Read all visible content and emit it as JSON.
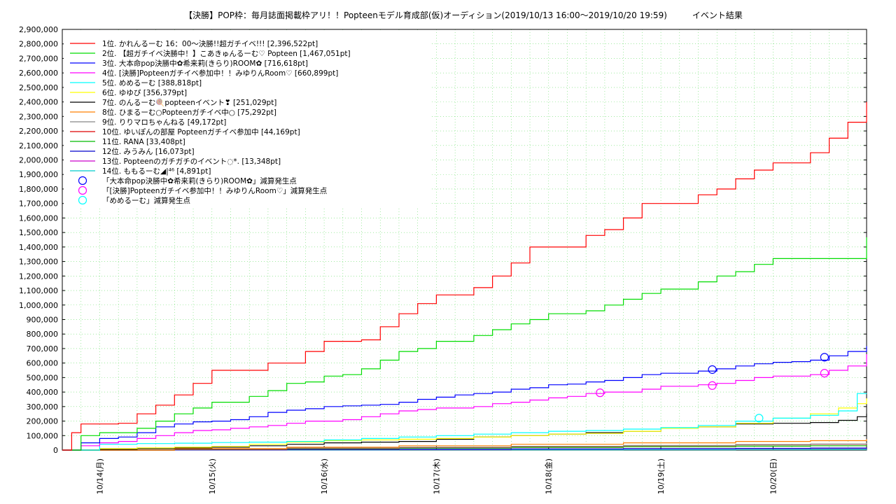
{
  "chart_data": {
    "type": "line",
    "title": "【決勝】POP枠：毎月誌面掲載枠アリ！！Popteenモデル育成部(仮)オーディション(2019/10/13 16:00〜2019/10/20 19:59)　　　イベント結果",
    "xlabel": "",
    "ylabel": "",
    "ylim": [
      0,
      2900000
    ],
    "y_ticks": [
      0,
      100000,
      200000,
      300000,
      400000,
      500000,
      600000,
      700000,
      800000,
      900000,
      1000000,
      1100000,
      1200000,
      1300000,
      1400000,
      1500000,
      1600000,
      1700000,
      1800000,
      1900000,
      2000000,
      2100000,
      2200000,
      2300000,
      2400000,
      2500000,
      2600000,
      2700000,
      2800000,
      2900000
    ],
    "y_tick_labels": [
      "0",
      "100,000",
      "200,000",
      "300,000",
      "400,000",
      "500,000",
      "600,000",
      "700,000",
      "800,000",
      "900,000",
      "1,000,000",
      "1,100,000",
      "1,200,000",
      "1,300,000",
      "1,400,000",
      "1,500,000",
      "1,600,000",
      "1,700,000",
      "1,800,000",
      "1,900,000",
      "2,000,000",
      "2,100,000",
      "2,200,000",
      "2,300,000",
      "2,400,000",
      "2,500,000",
      "2,600,000",
      "2,700,000",
      "2,800,000",
      "2,900,000"
    ],
    "xlim": [
      0,
      172
    ],
    "x_unit": "hours since 2019/10/13 16:00",
    "x_ticks": [
      8,
      32,
      56,
      80,
      104,
      128,
      152
    ],
    "x_tick_labels": [
      "10/14(月)",
      "10/15(火)",
      "10/16(水)",
      "10/17(木)",
      "10/18(金)",
      "10/19(土)",
      "10/20(日)"
    ],
    "grid": true,
    "legend_position": "top-left",
    "series": [
      {
        "name": "1位. かれんるーむ 16：00〜決勝!!超ガチイベ!!! [2,396,522pt]",
        "color": "#ff0000",
        "x": [
          0,
          2,
          4,
          8,
          12,
          16,
          20,
          24,
          28,
          32,
          36,
          40,
          44,
          48,
          52,
          56,
          60,
          64,
          68,
          72,
          76,
          80,
          84,
          88,
          92,
          96,
          100,
          104,
          108,
          112,
          116,
          120,
          124,
          128,
          132,
          136,
          140,
          144,
          148,
          152,
          156,
          160,
          164,
          168,
          172
        ],
        "y": [
          0,
          120000,
          180000,
          180000,
          185000,
          250000,
          310000,
          380000,
          460000,
          550000,
          550000,
          550000,
          600000,
          600000,
          680000,
          750000,
          750000,
          760000,
          850000,
          940000,
          1010000,
          1070000,
          1070000,
          1120000,
          1200000,
          1290000,
          1400000,
          1400000,
          1400000,
          1480000,
          1520000,
          1600000,
          1700000,
          1700000,
          1700000,
          1760000,
          1800000,
          1870000,
          1930000,
          1980000,
          1980000,
          2050000,
          2150000,
          2260000,
          2400000
        ]
      },
      {
        "name": "2位. 【超ガチイベ決勝中！】こあきゅんるーむ♡ Popteen [1,467,051pt]",
        "color": "#00dd00",
        "x": [
          0,
          4,
          8,
          12,
          16,
          20,
          24,
          28,
          32,
          36,
          40,
          44,
          48,
          52,
          56,
          60,
          64,
          68,
          72,
          76,
          80,
          84,
          88,
          92,
          96,
          100,
          104,
          108,
          112,
          116,
          120,
          124,
          128,
          132,
          136,
          140,
          144,
          148,
          152,
          156,
          160,
          164,
          168,
          172
        ],
        "y": [
          0,
          100000,
          120000,
          120000,
          150000,
          200000,
          250000,
          290000,
          330000,
          330000,
          370000,
          410000,
          460000,
          470000,
          510000,
          520000,
          560000,
          620000,
          680000,
          700000,
          750000,
          750000,
          790000,
          830000,
          870000,
          900000,
          940000,
          940000,
          960000,
          1000000,
          1040000,
          1080000,
          1110000,
          1110000,
          1160000,
          1200000,
          1230000,
          1280000,
          1320000,
          1320000,
          1320000,
          1320000,
          1320000,
          1467000
        ]
      },
      {
        "name": "3位. 大本命pop決勝中✿希来莉(きらり)ROOM✿ [716,618pt]",
        "color": "#0000ff",
        "x": [
          0,
          4,
          8,
          12,
          16,
          20,
          24,
          28,
          32,
          36,
          40,
          44,
          48,
          52,
          56,
          60,
          64,
          68,
          72,
          76,
          80,
          84,
          88,
          92,
          96,
          100,
          104,
          108,
          112,
          116,
          120,
          124,
          128,
          132,
          136,
          140,
          144,
          148,
          152,
          156,
          160,
          164,
          168,
          172
        ],
        "y": [
          0,
          50000,
          80000,
          90000,
          120000,
          160000,
          180000,
          195000,
          200000,
          210000,
          230000,
          260000,
          275000,
          285000,
          300000,
          305000,
          310000,
          315000,
          330000,
          350000,
          365000,
          380000,
          390000,
          400000,
          420000,
          430000,
          450000,
          455000,
          470000,
          480000,
          500000,
          520000,
          530000,
          530000,
          545000,
          560000,
          580000,
          595000,
          605000,
          610000,
          620000,
          650000,
          680000,
          716600
        ]
      },
      {
        "name": "4位. [決勝]Popteenガチイベ参加中！！みゆりんRoom♡ [660,899pt]",
        "color": "#ff00ff",
        "x": [
          0,
          4,
          8,
          12,
          16,
          20,
          24,
          28,
          32,
          36,
          40,
          44,
          48,
          52,
          56,
          60,
          64,
          68,
          72,
          76,
          80,
          84,
          88,
          92,
          96,
          100,
          104,
          108,
          112,
          116,
          120,
          124,
          128,
          132,
          136,
          140,
          144,
          148,
          152,
          156,
          160,
          164,
          168,
          172
        ],
        "y": [
          0,
          30000,
          50000,
          60000,
          80000,
          100000,
          120000,
          135000,
          140000,
          150000,
          160000,
          170000,
          185000,
          200000,
          200000,
          210000,
          230000,
          250000,
          270000,
          280000,
          290000,
          290000,
          300000,
          320000,
          330000,
          345000,
          360000,
          370000,
          390000,
          400000,
          400000,
          420000,
          440000,
          440000,
          450000,
          460000,
          480000,
          500000,
          510000,
          510000,
          520000,
          550000,
          580000,
          660900
        ]
      },
      {
        "name": "5位. めめるーむ [388,818pt]",
        "color": "#00ffff",
        "x": [
          0,
          8,
          16,
          24,
          32,
          40,
          48,
          56,
          64,
          72,
          80,
          88,
          96,
          104,
          112,
          120,
          128,
          136,
          144,
          152,
          160,
          166,
          170,
          172
        ],
        "y": [
          0,
          40000,
          45000,
          48000,
          52000,
          55000,
          60000,
          70000,
          80000,
          90000,
          100000,
          110000,
          120000,
          130000,
          135000,
          145000,
          155000,
          170000,
          200000,
          220000,
          240000,
          270000,
          390000,
          388800
        ]
      },
      {
        "name": "6位. ゆゆぴ [356,379pt]",
        "color": "#ffff00",
        "x": [
          0,
          8,
          16,
          24,
          32,
          40,
          48,
          56,
          64,
          72,
          80,
          88,
          96,
          104,
          112,
          120,
          128,
          136,
          144,
          152,
          160,
          166,
          170,
          172
        ],
        "y": [
          0,
          10000,
          15000,
          20000,
          25000,
          40000,
          55000,
          65000,
          70000,
          75000,
          80000,
          90000,
          100000,
          110000,
          115000,
          130000,
          150000,
          160000,
          185000,
          220000,
          250000,
          290000,
          320000,
          356400
        ]
      },
      {
        "name": "7位. のんるーむ🍭popteenイベント❣ [251,029pt]",
        "color": "#000000",
        "x": [
          0,
          8,
          16,
          24,
          32,
          40,
          48,
          56,
          64,
          72,
          80,
          88,
          96,
          104,
          112,
          120,
          128,
          136,
          144,
          152,
          160,
          166,
          170,
          172
        ],
        "y": [
          0,
          5000,
          10000,
          15000,
          20000,
          30000,
          40000,
          50000,
          55000,
          60000,
          75000,
          90000,
          100000,
          110000,
          120000,
          130000,
          150000,
          160000,
          180000,
          185000,
          190000,
          205000,
          230000,
          251000
        ]
      },
      {
        "name": "8位. ひまるーむ○Popteenガチイベ中○ [75,292pt]",
        "color": "#ff8000",
        "x": [
          0,
          24,
          48,
          72,
          96,
          120,
          144,
          160,
          172
        ],
        "y": [
          0,
          10000,
          20000,
          30000,
          40000,
          50000,
          60000,
          65000,
          75300
        ]
      },
      {
        "name": "9位. りりマロちゃんねる [49,172pt]",
        "color": "#888888",
        "x": [
          0,
          24,
          48,
          72,
          96,
          120,
          144,
          160,
          172
        ],
        "y": [
          0,
          8000,
          14000,
          20000,
          26000,
          32000,
          38000,
          42000,
          49200
        ]
      },
      {
        "name": "10位. ゆいぽんの部屋 Popteenガチイベ参加中 [44,169pt]",
        "color": "#dd0000",
        "x": [
          0,
          24,
          48,
          72,
          96,
          120,
          144,
          160,
          172
        ],
        "y": [
          0,
          6000,
          12000,
          18000,
          24000,
          30000,
          36000,
          40000,
          44200
        ]
      },
      {
        "name": "11位. RANA [33,408pt]",
        "color": "#00bb00",
        "x": [
          0,
          24,
          48,
          72,
          96,
          120,
          144,
          160,
          172
        ],
        "y": [
          0,
          5000,
          9000,
          14000,
          19000,
          23000,
          27000,
          30000,
          33400
        ]
      },
      {
        "name": "12位. みうみん [16,073pt]",
        "color": "#0000cc",
        "x": [
          0,
          24,
          48,
          72,
          96,
          120,
          144,
          160,
          172
        ],
        "y": [
          0,
          2000,
          4000,
          6000,
          8000,
          10000,
          12000,
          14000,
          16100
        ]
      },
      {
        "name": "13位. Popteenのガチガチのイベント◌*. [13,348pt]",
        "color": "#cc00cc",
        "x": [
          0,
          24,
          48,
          72,
          96,
          120,
          144,
          160,
          172
        ],
        "y": [
          0,
          2000,
          3500,
          5000,
          7000,
          9000,
          10500,
          12000,
          13300
        ]
      },
      {
        "name": "14位. ももるーむ◢|⁴⁶ [4,891pt]",
        "color": "#00cccc",
        "x": [
          0,
          24,
          48,
          72,
          96,
          120,
          144,
          160,
          172
        ],
        "y": [
          0,
          500,
          1000,
          1500,
          2000,
          2500,
          3500,
          4200,
          4900
        ]
      }
    ],
    "markers": [
      {
        "name": "「大本命pop決勝中✿希来莉(きらり)ROOM✿」減算発生点",
        "color": "#0000ff",
        "points": [
          {
            "x": 139,
            "y": 555000
          },
          {
            "x": 163,
            "y": 640000
          }
        ]
      },
      {
        "name": "「[決勝]Popteenガチイベ参加中！！みゆりんRoom♡」減算発生点",
        "color": "#ff00ff",
        "points": [
          {
            "x": 115,
            "y": 395000
          },
          {
            "x": 139,
            "y": 445000
          },
          {
            "x": 163,
            "y": 530000
          }
        ]
      },
      {
        "name": "「めめるーむ」減算発生点",
        "color": "#00ffff",
        "points": [
          {
            "x": 149,
            "y": 220000
          }
        ]
      }
    ]
  }
}
